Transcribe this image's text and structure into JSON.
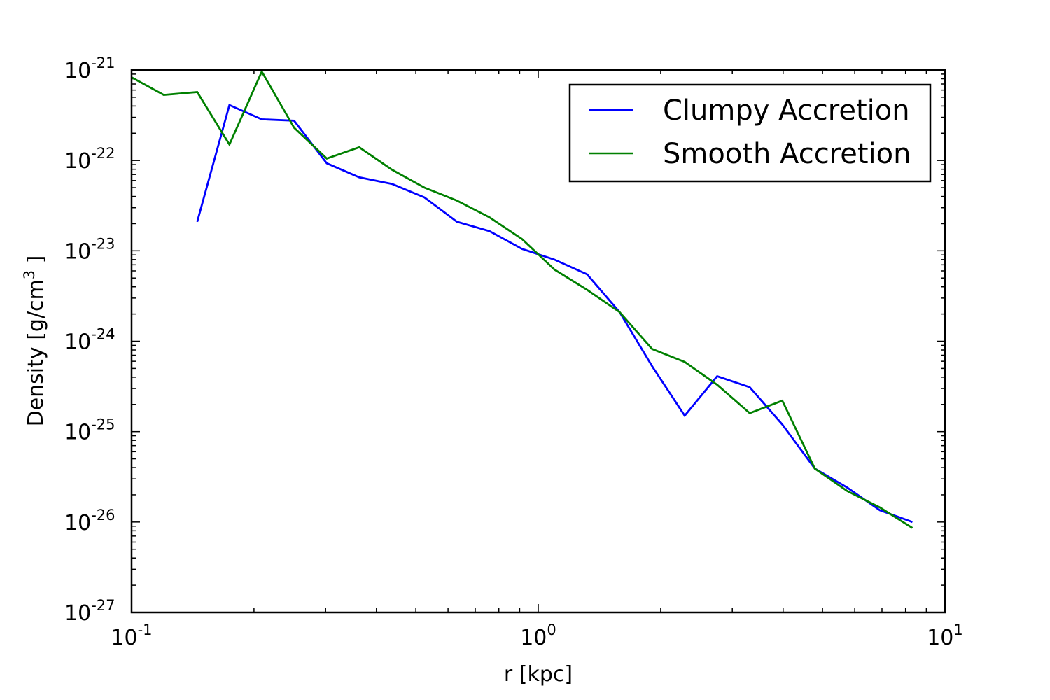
{
  "chart_data": {
    "type": "line",
    "xlabel": "r [kpc]",
    "ylabel_main": "Density [g/cm",
    "ylabel_sup": "3",
    "ylabel_tail": " ]",
    "xscale": "log",
    "yscale": "log",
    "xlim": [
      0.1,
      10
    ],
    "ylim": [
      1e-27,
      1e-21
    ],
    "grid": false,
    "legend_position": "top-right",
    "x_ticks": [
      {
        "base": "10",
        "exp": "-1",
        "value": 0.1
      },
      {
        "base": "10",
        "exp": "0",
        "value": 1
      },
      {
        "base": "10",
        "exp": "1",
        "value": 10
      }
    ],
    "y_ticks": [
      {
        "base": "10",
        "exp": "-21",
        "value": 1e-21
      },
      {
        "base": "10",
        "exp": "-22",
        "value": 1e-22
      },
      {
        "base": "10",
        "exp": "-23",
        "value": 1e-23
      },
      {
        "base": "10",
        "exp": "-24",
        "value": 1e-24
      },
      {
        "base": "10",
        "exp": "-25",
        "value": 1e-25
      },
      {
        "base": "10",
        "exp": "-26",
        "value": 1e-26
      },
      {
        "base": "10",
        "exp": "-27",
        "value": 1e-27
      }
    ],
    "series": [
      {
        "name": "Clumpy Accretion",
        "color": "#0000ff",
        "points": [
          [
            0.145,
            2.1e-23
          ],
          [
            0.174,
            4.1e-22
          ],
          [
            0.209,
            2.85e-22
          ],
          [
            0.251,
            2.75e-22
          ],
          [
            0.302,
            9.3e-23
          ],
          [
            0.363,
            6.5e-23
          ],
          [
            0.437,
            5.5e-23
          ],
          [
            0.525,
            3.9e-23
          ],
          [
            0.631,
            2.1e-23
          ],
          [
            0.759,
            1.65e-23
          ],
          [
            0.912,
            1.05e-23
          ],
          [
            1.096,
            8e-24
          ],
          [
            1.318,
            5.5e-24
          ],
          [
            1.585,
            2.1e-24
          ],
          [
            1.905,
            5.3e-25
          ],
          [
            2.291,
            1.5e-25
          ],
          [
            2.754,
            4.1e-25
          ],
          [
            3.311,
            3.1e-25
          ],
          [
            3.981,
            1.2e-25
          ],
          [
            4.786,
            3.9e-26
          ],
          [
            5.754,
            2.4e-26
          ],
          [
            6.918,
            1.35e-26
          ],
          [
            8.318,
            1e-26
          ]
        ]
      },
      {
        "name": "Smooth Accretion",
        "color": "#008000",
        "points": [
          [
            0.1,
            8.3e-22
          ],
          [
            0.12,
            5.3e-22
          ],
          [
            0.145,
            5.7e-22
          ],
          [
            0.174,
            1.5e-22
          ],
          [
            0.209,
            9.6e-22
          ],
          [
            0.251,
            2.3e-22
          ],
          [
            0.302,
            1.05e-22
          ],
          [
            0.363,
            1.4e-22
          ],
          [
            0.437,
            7.9e-23
          ],
          [
            0.525,
            5e-23
          ],
          [
            0.631,
            3.6e-23
          ],
          [
            0.759,
            2.35e-23
          ],
          [
            0.912,
            1.35e-23
          ],
          [
            1.096,
            6.2e-24
          ],
          [
            1.318,
            3.7e-24
          ],
          [
            1.585,
            2.1e-24
          ],
          [
            1.905,
            8.2e-25
          ],
          [
            2.291,
            5.9e-25
          ],
          [
            2.754,
            3.3e-25
          ],
          [
            3.311,
            1.6e-25
          ],
          [
            3.981,
            2.2e-25
          ],
          [
            4.786,
            3.9e-26
          ],
          [
            5.754,
            2.2e-26
          ],
          [
            6.918,
            1.45e-26
          ],
          [
            8.318,
            8.6e-27
          ]
        ]
      }
    ]
  }
}
